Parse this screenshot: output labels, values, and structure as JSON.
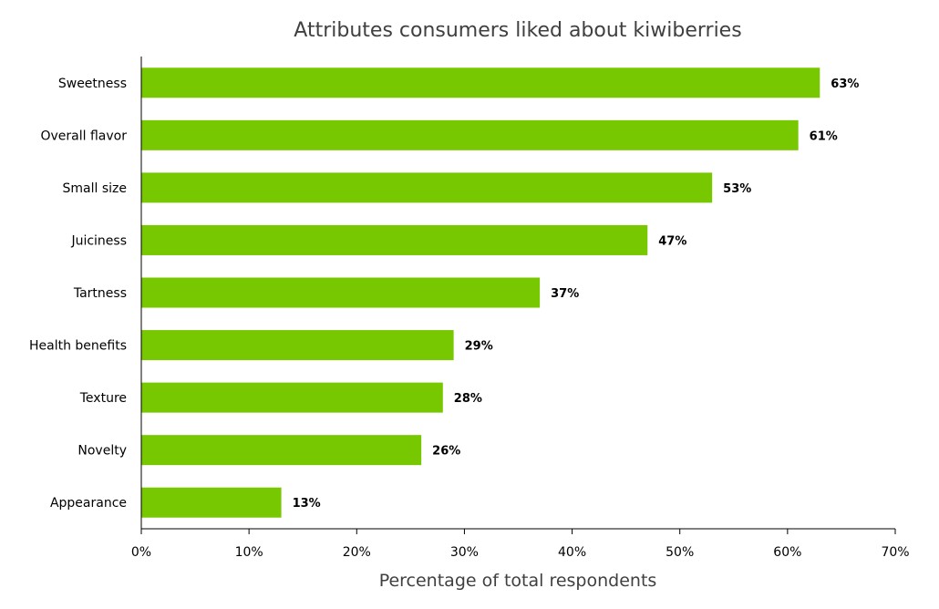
{
  "chart_data": {
    "type": "bar",
    "orientation": "horizontal",
    "title": "Attributes consumers liked about kiwiberries",
    "xlabel": "Percentage of total respondents",
    "ylabel": "",
    "categories": [
      "Sweetness",
      "Overall flavor",
      "Small size",
      "Juiciness",
      "Tartness",
      "Health benefits",
      "Texture",
      "Novelty",
      "Appearance"
    ],
    "values": [
      63,
      61,
      53,
      47,
      37,
      29,
      28,
      26,
      13
    ],
    "value_labels": [
      "63%",
      "61%",
      "53%",
      "47%",
      "37%",
      "29%",
      "28%",
      "26%",
      "13%"
    ],
    "xlim": [
      0,
      70
    ],
    "xticks": [
      0,
      10,
      20,
      30,
      40,
      50,
      60,
      70
    ],
    "xtick_labels": [
      "0%",
      "10%",
      "20%",
      "30%",
      "40%",
      "50%",
      "60%",
      "70%"
    ],
    "grid": false,
    "legend": "none",
    "bar_color": "#77c800"
  }
}
